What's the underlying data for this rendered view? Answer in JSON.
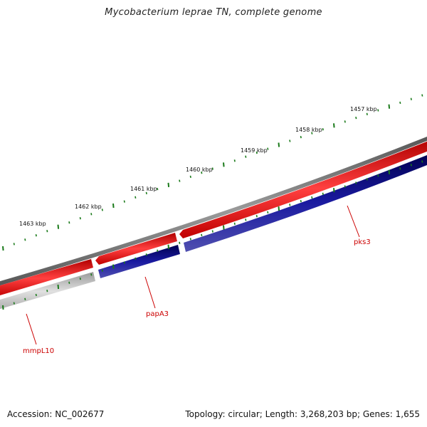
{
  "title": "Mycobacterium leprae TN, complete genome",
  "scale": {
    "unit": "kbp",
    "labels": [
      "1457 kbp",
      "1458 kbp",
      "1459 kbp",
      "1460 kbp",
      "1461 kbp",
      "1462 kbp",
      "1463 kbp"
    ]
  },
  "genes": [
    {
      "name": "pks3",
      "strand": "reverse",
      "color": "#000080"
    },
    {
      "name": "papA3",
      "strand": "reverse",
      "color": "#000080"
    },
    {
      "name": "mmpL10",
      "strand": "reverse",
      "color": "#c0c0c0"
    }
  ],
  "footer": {
    "accession": "Accession: NC_002677",
    "summary": "Topology: circular; Length: 3,268,203 bp; Genes: 1,655"
  },
  "colors": {
    "backbone": "#808080",
    "forward_track": "#ff0000",
    "reverse_track": "#000080",
    "ticks": "#1a7a1a",
    "labels": "#cc0000"
  }
}
